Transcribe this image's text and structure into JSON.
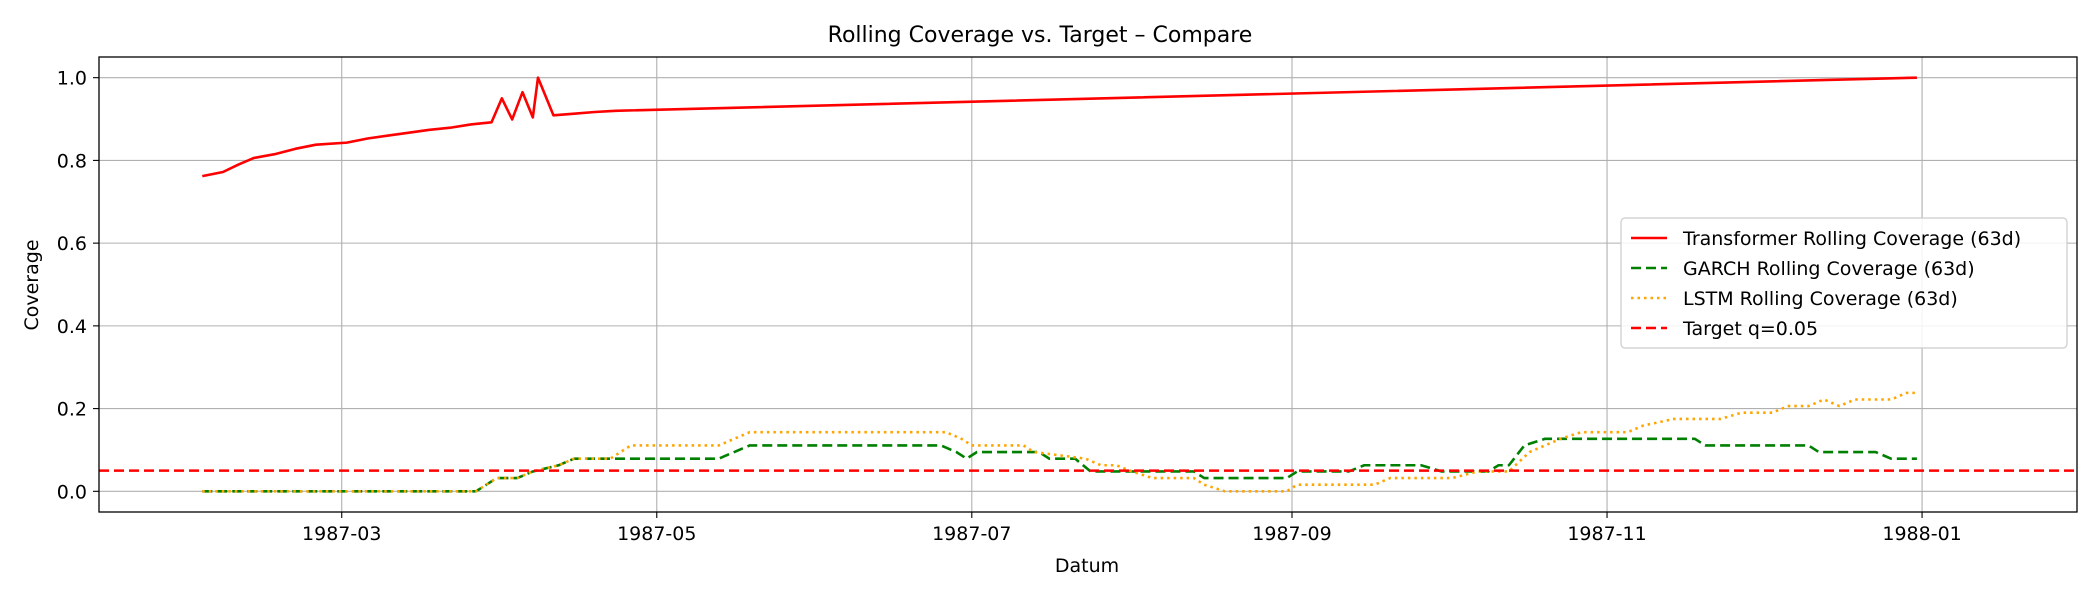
{
  "chart_data": {
    "type": "line",
    "title": "Rolling Coverage vs. Target – Compare",
    "xlabel": "Datum",
    "ylabel": "Coverage",
    "xlim": [
      "1987-01-13",
      "1988-01-31"
    ],
    "ylim": [
      -0.05,
      1.05
    ],
    "x_ticks": [
      "1987-03",
      "1987-05",
      "1987-07",
      "1987-09",
      "1987-11",
      "1988-01"
    ],
    "y_ticks": [
      "0.0",
      "0.2",
      "0.4",
      "0.6",
      "0.8",
      "1.0"
    ],
    "grid": true,
    "legend_position": "center-right",
    "series": [
      {
        "name": "Transformer Rolling Coverage (63d)",
        "color": "#ff0000",
        "style": "solid",
        "points": [
          [
            "1987-02-02",
            0.762
          ],
          [
            "1987-02-06",
            0.772
          ],
          [
            "1987-02-09",
            0.79
          ],
          [
            "1987-02-12",
            0.806
          ],
          [
            "1987-02-16",
            0.815
          ],
          [
            "1987-02-20",
            0.828
          ],
          [
            "1987-02-24",
            0.838
          ],
          [
            "1987-03-02",
            0.843
          ],
          [
            "1987-03-06",
            0.853
          ],
          [
            "1987-03-10",
            0.86
          ],
          [
            "1987-03-14",
            0.867
          ],
          [
            "1987-03-18",
            0.874
          ],
          [
            "1987-03-22",
            0.879
          ],
          [
            "1987-03-26",
            0.887
          ],
          [
            "1987-03-30",
            0.892
          ],
          [
            "1987-04-03",
            0.899
          ],
          [
            "1987-04-07",
            0.904
          ],
          [
            "1987-04-11",
            0.909
          ],
          [
            "1987-04-15",
            0.913
          ],
          [
            "1987-04-19",
            0.917
          ],
          [
            "1987-04-23",
            0.92
          ],
          [
            "1987-03-30",
            0.892
          ],
          [
            "1987-04-01",
            0.95
          ],
          [
            "1987-04-05",
            0.965
          ],
          [
            "1987-04-08",
            1.0
          ],
          [
            "1987-12-31",
            1.0
          ]
        ]
      },
      {
        "name": "GARCH Rolling Coverage (63d)",
        "color": "#008000",
        "style": "dashed",
        "points": [
          [
            "1987-02-02",
            0.0
          ],
          [
            "1987-03-27",
            0.0
          ],
          [
            "1987-03-29",
            0.016
          ],
          [
            "1987-03-31",
            0.032
          ],
          [
            "1987-04-04",
            0.032
          ],
          [
            "1987-04-07",
            0.048
          ],
          [
            "1987-04-12",
            0.063
          ],
          [
            "1987-04-15",
            0.079
          ],
          [
            "1987-05-13",
            0.079
          ],
          [
            "1987-05-16",
            0.095
          ],
          [
            "1987-05-19",
            0.111
          ],
          [
            "1987-06-25",
            0.111
          ],
          [
            "1987-06-28",
            0.095
          ],
          [
            "1987-06-30",
            0.079
          ],
          [
            "1987-07-02",
            0.095
          ],
          [
            "1987-07-14",
            0.095
          ],
          [
            "1987-07-16",
            0.079
          ],
          [
            "1987-07-21",
            0.079
          ],
          [
            "1987-07-24",
            0.048
          ],
          [
            "1987-08-13",
            0.048
          ],
          [
            "1987-08-15",
            0.032
          ],
          [
            "1987-08-31",
            0.032
          ],
          [
            "1987-09-02",
            0.048
          ],
          [
            "1987-09-12",
            0.048
          ],
          [
            "1987-09-15",
            0.063
          ],
          [
            "1987-09-26",
            0.063
          ],
          [
            "1987-09-30",
            0.048
          ],
          [
            "1987-10-09",
            0.048
          ],
          [
            "1987-10-11",
            0.063
          ],
          [
            "1987-10-13",
            0.063
          ],
          [
            "1987-10-16",
            0.111
          ],
          [
            "1987-10-20",
            0.127
          ],
          [
            "1987-11-18",
            0.127
          ],
          [
            "1987-11-20",
            0.111
          ],
          [
            "1987-12-10",
            0.111
          ],
          [
            "1987-12-12",
            0.095
          ],
          [
            "1987-12-23",
            0.095
          ],
          [
            "1987-12-26",
            0.079
          ],
          [
            "1987-12-31",
            0.079
          ]
        ]
      },
      {
        "name": "LSTM Rolling Coverage (63d)",
        "color": "#ffa500",
        "style": "dotted",
        "points": [
          [
            "1987-02-02",
            0.0
          ],
          [
            "1987-03-27",
            0.0
          ],
          [
            "1987-03-29",
            0.016
          ],
          [
            "1987-03-31",
            0.032
          ],
          [
            "1987-04-04",
            0.032
          ],
          [
            "1987-04-07",
            0.048
          ],
          [
            "1987-04-12",
            0.063
          ],
          [
            "1987-04-15",
            0.079
          ],
          [
            "1987-04-22",
            0.079
          ],
          [
            "1987-04-24",
            0.095
          ],
          [
            "1987-04-26",
            0.111
          ],
          [
            "1987-05-13",
            0.111
          ],
          [
            "1987-05-16",
            0.127
          ],
          [
            "1987-05-19",
            0.143
          ],
          [
            "1987-06-26",
            0.143
          ],
          [
            "1987-06-29",
            0.127
          ],
          [
            "1987-07-01",
            0.111
          ],
          [
            "1987-07-11",
            0.111
          ],
          [
            "1987-07-13",
            0.095
          ],
          [
            "1987-07-23",
            0.079
          ],
          [
            "1987-07-26",
            0.063
          ],
          [
            "1987-07-29",
            0.063
          ],
          [
            "1987-08-01",
            0.048
          ],
          [
            "1987-08-05",
            0.032
          ],
          [
            "1987-08-13",
            0.032
          ],
          [
            "1987-08-15",
            0.016
          ],
          [
            "1987-08-19",
            0.0
          ],
          [
            "1987-08-31",
            0.0
          ],
          [
            "1987-09-02",
            0.016
          ],
          [
            "1987-09-17",
            0.016
          ],
          [
            "1987-09-20",
            0.032
          ],
          [
            "1987-10-02",
            0.032
          ],
          [
            "1987-10-07",
            0.048
          ],
          [
            "1987-10-13",
            0.048
          ],
          [
            "1987-10-17",
            0.095
          ],
          [
            "1987-10-23",
            0.127
          ],
          [
            "1987-10-27",
            0.143
          ],
          [
            "1987-11-05",
            0.143
          ],
          [
            "1987-11-08",
            0.159
          ],
          [
            "1987-11-14",
            0.175
          ],
          [
            "1987-11-23",
            0.175
          ],
          [
            "1987-11-27",
            0.19
          ],
          [
            "1987-12-03",
            0.19
          ],
          [
            "1987-12-06",
            0.206
          ],
          [
            "1987-12-10",
            0.206
          ],
          [
            "1987-12-13",
            0.222
          ],
          [
            "1987-12-16",
            0.206
          ],
          [
            "1987-12-19",
            0.222
          ],
          [
            "1987-12-26",
            0.222
          ],
          [
            "1987-12-29",
            0.238
          ],
          [
            "1987-12-31",
            0.238
          ]
        ]
      },
      {
        "name": "Target q=0.05",
        "color": "#ff0000",
        "style": "dashed",
        "hline": 0.05
      }
    ]
  }
}
